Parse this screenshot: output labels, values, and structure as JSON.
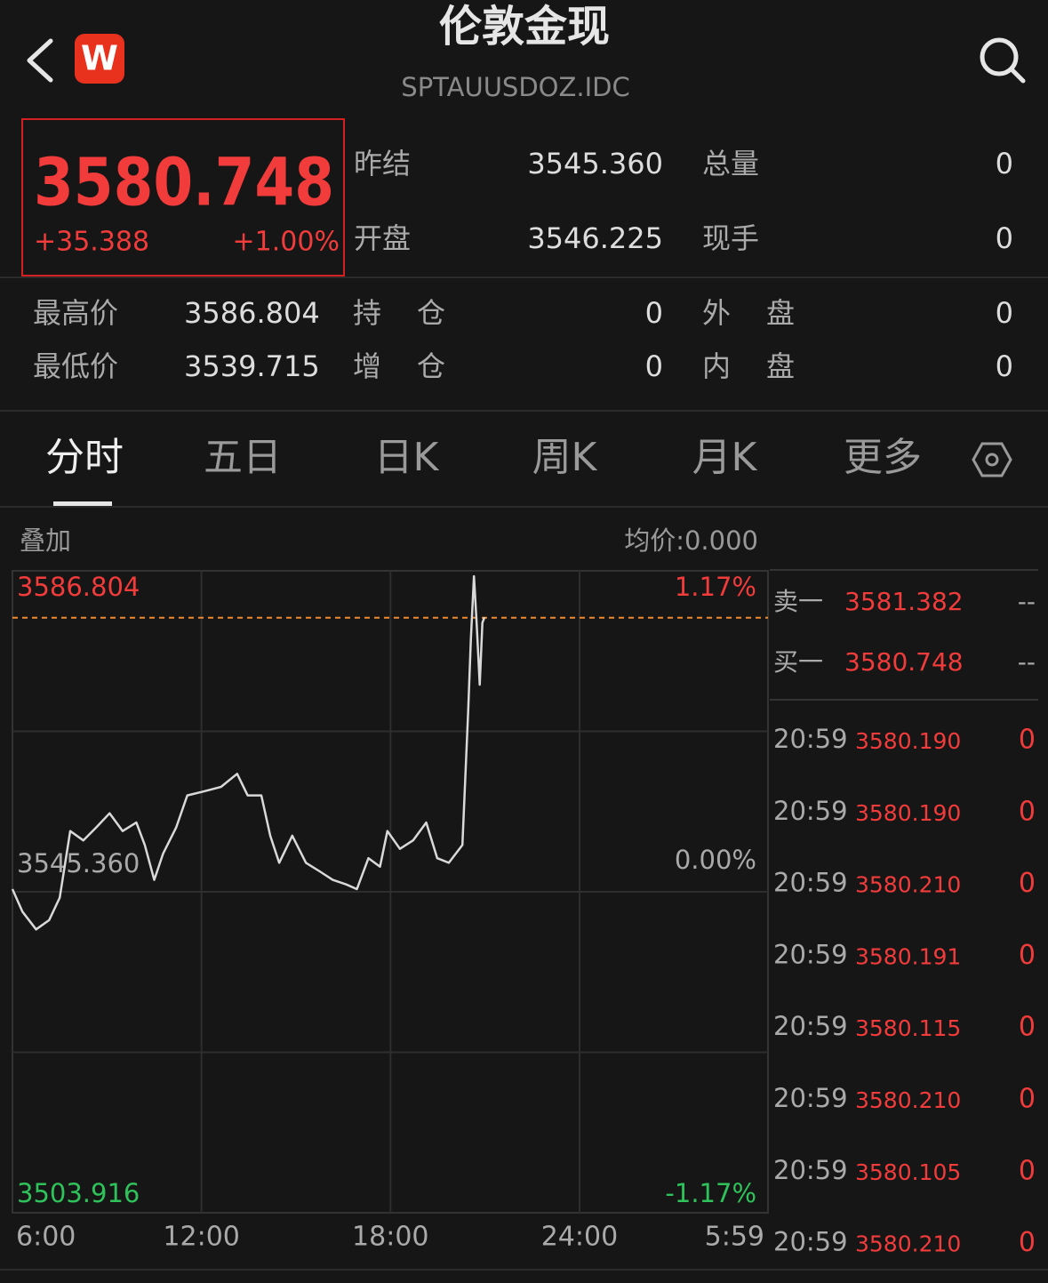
{
  "header": {
    "title": "伦敦金现",
    "code": "SPTAUUSDOZ.IDC",
    "logo": "W"
  },
  "quote": {
    "price": 3580.748,
    "change": "+35.388",
    "change_pct": "+1.00%"
  },
  "stats": [
    [
      {
        "label": "昨结",
        "value": "3545.360"
      },
      {
        "label": "总量",
        "value": "0"
      }
    ],
    [
      {
        "label": "开盘",
        "value": "3546.225"
      },
      {
        "label": "现手",
        "value": "0"
      }
    ],
    [
      {
        "label": "最高价",
        "value": "3586.804"
      },
      {
        "label": "持仓",
        "value": "0"
      },
      {
        "label": "外盘",
        "value": "0"
      }
    ],
    [
      {
        "label": "最低价",
        "value": "3539.715"
      },
      {
        "label": "增仓",
        "value": "0"
      },
      {
        "label": "内盘",
        "value": "0"
      }
    ]
  ],
  "tabs": [
    "分时",
    "五日",
    "日K",
    "周K",
    "月K",
    "更多"
  ],
  "chart_header": {
    "overlay": "叠加",
    "avg_price": "均价:0.000"
  },
  "chart_data": {
    "type": "line",
    "color": "#d9d9d9",
    "ref_color": "#f08a2c",
    "x": [
      "6:00",
      "6:19",
      "6:45",
      "7:10",
      "7:30",
      "7:50",
      "8:15",
      "8:40",
      "9:05",
      "9:30",
      "9:56",
      "10:12",
      "10:30",
      "10:47",
      "11:12",
      "11:33",
      "12:03",
      "12:37",
      "13:08",
      "13:28",
      "13:54",
      "14:11",
      "14:28",
      "14:53",
      "15:19",
      "15:45",
      "16:10",
      "16:36",
      "16:56",
      "17:18",
      "17:40",
      "17:54",
      "18:18",
      "18:43",
      "19:08",
      "19:29",
      "19:51",
      "20:17",
      "20:28",
      "20:33",
      "20:39",
      "20:44",
      "20:50",
      "20:55",
      "20:59"
    ],
    "values": [
      3545.7,
      3542.8,
      3540.5,
      3541.7,
      3544.6,
      3553.2,
      3552.0,
      3553.7,
      3555.5,
      3553.2,
      3554.3,
      3551.4,
      3546.9,
      3550.3,
      3553.7,
      3557.8,
      3558.3,
      3558.9,
      3560.6,
      3557.8,
      3557.8,
      3552.6,
      3549.1,
      3552.6,
      3549.1,
      3548.0,
      3546.9,
      3546.3,
      3545.7,
      3549.7,
      3548.6,
      3553.2,
      3550.9,
      3552.0,
      3554.3,
      3549.7,
      3549.1,
      3551.4,
      3568.7,
      3577.9,
      3586.1,
      3580.1,
      3572.1,
      3580.1,
      3580.8
    ],
    "xlim": [
      "6:00",
      "5:59"
    ],
    "xticks": [
      "6:00",
      "12:00",
      "18:00",
      "24:00",
      "5:59"
    ],
    "ylim": [
      3503.916,
      3586.804
    ],
    "yticks": [
      3503.916,
      {
        "value": 3545.36,
        "label": "3545.360"
      },
      3586.804
    ],
    "y2lim": [
      -1.17,
      1.17
    ],
    "y2ticks": [
      {
        "value": -1.17,
        "label": "-1.17%"
      },
      {
        "value": 0,
        "label": "0.00%"
      },
      {
        "value": 1.17,
        "label": "1.17%"
      }
    ]
  },
  "order_book": [
    {
      "label": "卖一",
      "price": "3581.382",
      "volume": "--"
    },
    {
      "label": "买一",
      "price": "3580.748",
      "volume": "--"
    }
  ],
  "trades": [
    {
      "time": "20:59",
      "price": "3580.190",
      "volume": "0"
    },
    {
      "time": "20:59",
      "price": "3580.190",
      "volume": "0"
    },
    {
      "time": "20:59",
      "price": "3580.210",
      "volume": "0"
    },
    {
      "time": "20:59",
      "price": "3580.191",
      "volume": "0"
    },
    {
      "time": "20:59",
      "price": "3580.115",
      "volume": "0"
    },
    {
      "time": "20:59",
      "price": "3580.210",
      "volume": "0"
    },
    {
      "time": "20:59",
      "price": "3580.105",
      "volume": "0"
    },
    {
      "time": "20:59",
      "price": "3580.210",
      "volume": "0"
    }
  ]
}
